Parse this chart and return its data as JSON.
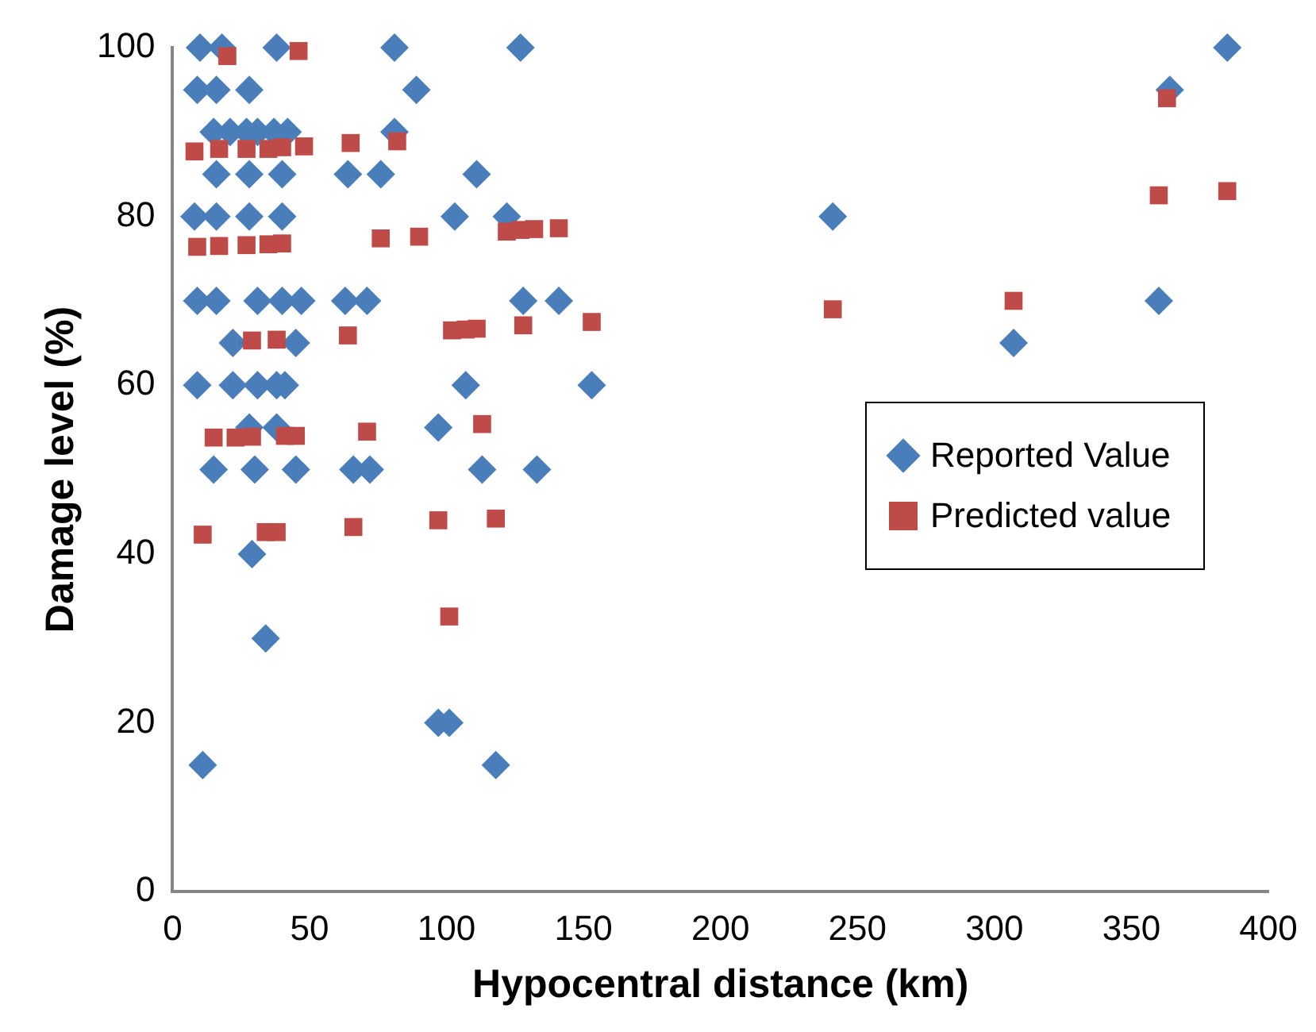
{
  "chart_data": {
    "type": "scatter",
    "xlabel": "Hypocentral distance (km)",
    "ylabel": "Damage level (%)",
    "xlim": [
      0,
      400
    ],
    "xticks": [
      0,
      50,
      100,
      150,
      200,
      250,
      300,
      350,
      400
    ],
    "ylim": [
      0,
      100
    ],
    "yticks": [
      0,
      20,
      40,
      60,
      80,
      100
    ],
    "grid": false,
    "legend": "right",
    "series": [
      {
        "name": "Reported Value",
        "color": "#4a7ebb",
        "marker": "diamond",
        "x": [
          10,
          18,
          38,
          81,
          127,
          385,
          9,
          16,
          28,
          89,
          364,
          15,
          21,
          27,
          31,
          37,
          42,
          81,
          16,
          28,
          40,
          64,
          76,
          111,
          8,
          16,
          28,
          40,
          103,
          122,
          241,
          9,
          16,
          31,
          40,
          47,
          63,
          71,
          128,
          141,
          360,
          22,
          45,
          307,
          9,
          22,
          31,
          38,
          41,
          107,
          153,
          28,
          38,
          97,
          15,
          30,
          45,
          66,
          72,
          113,
          133,
          29,
          34,
          97,
          101,
          11,
          118
        ],
        "values": [
          100,
          100,
          100,
          100,
          100,
          100,
          95,
          95,
          95,
          95,
          95,
          90,
          90,
          90,
          90,
          90,
          90,
          90,
          85,
          85,
          85,
          85,
          85,
          85,
          80,
          80,
          80,
          80,
          80,
          80,
          80,
          70,
          70,
          70,
          70,
          70,
          70,
          70,
          70,
          70,
          70,
          65,
          65,
          65,
          60,
          60,
          60,
          60,
          60,
          60,
          60,
          55,
          55,
          55,
          50,
          50,
          50,
          50,
          50,
          50,
          50,
          40,
          30,
          20,
          20,
          15,
          15
        ]
      },
      {
        "name": "Predicted value",
        "color": "#be4b48",
        "marker": "square",
        "x": [
          20,
          46,
          8,
          17,
          27,
          35,
          40,
          48,
          65,
          82,
          9,
          17,
          27,
          35,
          40,
          76,
          90,
          122,
          127,
          132,
          141,
          102,
          107,
          111,
          128,
          153,
          29,
          38,
          64,
          15,
          23,
          29,
          41,
          45,
          71,
          113,
          11,
          34,
          38,
          66,
          97,
          118,
          101,
          241,
          307,
          360,
          363,
          385
        ],
        "values": [
          99,
          99.6,
          87.7,
          88,
          88,
          88,
          88.2,
          88.3,
          88.7,
          88.9,
          76.4,
          76.5,
          76.6,
          76.7,
          76.8,
          77.4,
          77.6,
          78.2,
          78.4,
          78.5,
          78.6,
          66.5,
          66.6,
          66.7,
          67.1,
          67.5,
          65.3,
          65.4,
          65.9,
          53.8,
          53.8,
          53.9,
          54,
          54,
          54.5,
          55.4,
          42.3,
          42.6,
          42.6,
          43.2,
          44,
          44.2,
          32.6,
          69,
          70,
          82.5,
          94,
          83
        ]
      }
    ]
  }
}
